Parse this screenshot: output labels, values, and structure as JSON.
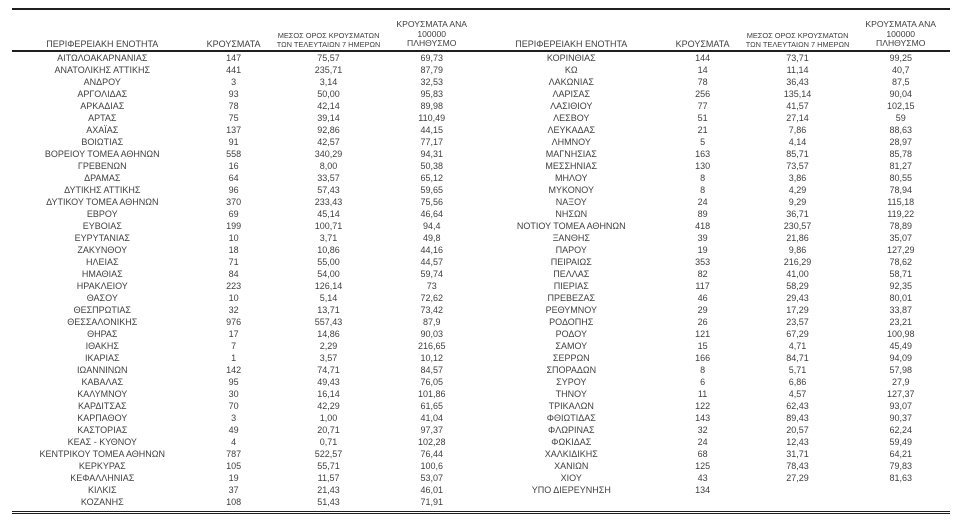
{
  "document": {
    "type": "covid-cases-by-regional-unit-table",
    "text_color": "#3f3f3f",
    "line_color": "#1f1f1f",
    "background_color": "#ffffff"
  },
  "header": {
    "region_label": "ΠΕΡΙΦΕΡΕΙΑΚΗ ΕΝΟΤΗΤΑ",
    "cases_label": "ΚΡΟΥΣΜΑΤΑ",
    "avg7_line1": "ΜΕΣΟΣ ΟΡΟΣ ΚΡΟΥΣΜΑΤΩΝ",
    "avg7_line2": "ΤΩΝ ΤΕΛΕΥΤΑΙΩΝ 7 ΗΜΕΡΩΝ",
    "per100k_line1": "ΚΡΟΥΣΜΑΤΑ ΑΝΑ 100000",
    "per100k_line2": "ΠΛΗΘΥΣΜΟ"
  },
  "tables": [
    {
      "rows": [
        [
          "ΑΙΤΩΛΟΑΚΑΡΝΑΝΙΑΣ",
          "147",
          "75,57",
          "69,73"
        ],
        [
          "ΑΝΑΤΟΛΙΚΗΣ ΑΤΤΙΚΗΣ",
          "441",
          "235,71",
          "87,79"
        ],
        [
          "ΑΝΔΡΟΥ",
          "3",
          "3,14",
          "32,53"
        ],
        [
          "ΑΡΓΟΛΙΔΑΣ",
          "93",
          "50,00",
          "95,83"
        ],
        [
          "ΑΡΚΑΔΙΑΣ",
          "78",
          "42,14",
          "89,98"
        ],
        [
          "ΑΡΤΑΣ",
          "75",
          "39,14",
          "110,49"
        ],
        [
          "ΑΧΑΪΑΣ",
          "137",
          "92,86",
          "44,15"
        ],
        [
          "ΒΟΙΩΤΙΑΣ",
          "91",
          "42,57",
          "77,17"
        ],
        [
          "ΒΟΡΕΙΟΥ ΤΟΜΕΑ ΑΘΗΝΩΝ",
          "558",
          "340,29",
          "94,31"
        ],
        [
          "ΓΡΕΒΕΝΩΝ",
          "16",
          "8,00",
          "50,38"
        ],
        [
          "ΔΡΑΜΑΣ",
          "64",
          "33,57",
          "65,12"
        ],
        [
          "ΔΥΤΙΚΗΣ ΑΤΤΙΚΗΣ",
          "96",
          "57,43",
          "59,65"
        ],
        [
          "ΔΥΤΙΚΟΥ ΤΟΜΕΑ ΑΘΗΝΩΝ",
          "370",
          "233,43",
          "75,56"
        ],
        [
          "ΕΒΡΟΥ",
          "69",
          "45,14",
          "46,64"
        ],
        [
          "ΕΥΒΟΙΑΣ",
          "199",
          "100,71",
          "94,4"
        ],
        [
          "ΕΥΡΥΤΑΝΙΑΣ",
          "10",
          "3,71",
          "49,8"
        ],
        [
          "ΖΑΚΥΝΘΟΥ",
          "18",
          "10,86",
          "44,16"
        ],
        [
          "ΗΛΕΙΑΣ",
          "71",
          "55,00",
          "44,57"
        ],
        [
          "ΗΜΑΘΙΑΣ",
          "84",
          "54,00",
          "59,74"
        ],
        [
          "ΗΡΑΚΛΕΙΟΥ",
          "223",
          "126,14",
          "73"
        ],
        [
          "ΘΑΣΟΥ",
          "10",
          "5,14",
          "72,62"
        ],
        [
          "ΘΕΣΠΡΩΤΙΑΣ",
          "32",
          "13,71",
          "73,42"
        ],
        [
          "ΘΕΣΣΑΛΟΝΙΚΗΣ",
          "976",
          "557,43",
          "87,9"
        ],
        [
          "ΘΗΡΑΣ",
          "17",
          "14,86",
          "90,03"
        ],
        [
          "ΙΘΑΚΗΣ",
          "7",
          "2,29",
          "216,65"
        ],
        [
          "ΙΚΑΡΙΑΣ",
          "1",
          "3,57",
          "10,12"
        ],
        [
          "ΙΩΑΝΝΙΝΩΝ",
          "142",
          "74,71",
          "84,57"
        ],
        [
          "ΚΑΒΑΛΑΣ",
          "95",
          "49,43",
          "76,05"
        ],
        [
          "ΚΑΛΥΜΝΟΥ",
          "30",
          "16,14",
          "101,86"
        ],
        [
          "ΚΑΡΔΙΤΣΑΣ",
          "70",
          "42,29",
          "61,65"
        ],
        [
          "ΚΑΡΠΑΘΟΥ",
          "3",
          "1,00",
          "41,04"
        ],
        [
          "ΚΑΣΤΟΡΙΑΣ",
          "49",
          "20,71",
          "97,37"
        ],
        [
          "ΚΕΑΣ - ΚΥΘΝΟΥ",
          "4",
          "0,71",
          "102,28"
        ],
        [
          "ΚΕΝΤΡΙΚΟΥ ΤΟΜΕΑ ΑΘΗΝΩΝ",
          "787",
          "522,57",
          "76,44"
        ],
        [
          "ΚΕΡΚΥΡΑΣ",
          "105",
          "55,71",
          "100,6"
        ],
        [
          "ΚΕΦΑΛΛΗΝΙΑΣ",
          "19",
          "11,57",
          "53,07"
        ],
        [
          "ΚΙΛΚΙΣ",
          "37",
          "21,43",
          "46,01"
        ],
        [
          "ΚΟΖΑΝΗΣ",
          "108",
          "51,43",
          "71,91"
        ]
      ]
    },
    {
      "rows": [
        [
          "ΚΟΡΙΝΘΙΑΣ",
          "144",
          "73,71",
          "99,25"
        ],
        [
          "ΚΩ",
          "14",
          "11,14",
          "40,7"
        ],
        [
          "ΛΑΚΩΝΙΑΣ",
          "78",
          "36,43",
          "87,5"
        ],
        [
          "ΛΑΡΙΣΑΣ",
          "256",
          "135,14",
          "90,04"
        ],
        [
          "ΛΑΣΙΘΙΟΥ",
          "77",
          "41,57",
          "102,15"
        ],
        [
          "ΛΕΣΒΟΥ",
          "51",
          "27,14",
          "59"
        ],
        [
          "ΛΕΥΚΑΔΑΣ",
          "21",
          "7,86",
          "88,63"
        ],
        [
          "ΛΗΜΝΟΥ",
          "5",
          "4,14",
          "28,97"
        ],
        [
          "ΜΑΓΝΗΣΙΑΣ",
          "163",
          "85,71",
          "85,78"
        ],
        [
          "ΜΕΣΣΗΝΙΑΣ",
          "130",
          "73,57",
          "81,27"
        ],
        [
          "ΜΗΛΟΥ",
          "8",
          "3,86",
          "80,55"
        ],
        [
          "ΜΥΚΟΝΟΥ",
          "8",
          "4,29",
          "78,94"
        ],
        [
          "ΝΑΞΟΥ",
          "24",
          "9,29",
          "115,18"
        ],
        [
          "ΝΗΣΩΝ",
          "89",
          "36,71",
          "119,22"
        ],
        [
          "ΝΟΤΙΟΥ ΤΟΜΕΑ ΑΘΗΝΩΝ",
          "418",
          "230,57",
          "78,89"
        ],
        [
          "ΞΑΝΘΗΣ",
          "39",
          "21,86",
          "35,07"
        ],
        [
          "ΠΑΡΟΥ",
          "19",
          "9,86",
          "127,29"
        ],
        [
          "ΠΕΙΡΑΙΩΣ",
          "353",
          "216,29",
          "78,62"
        ],
        [
          "ΠΕΛΛΑΣ",
          "82",
          "41,00",
          "58,71"
        ],
        [
          "ΠΙΕΡΙΑΣ",
          "117",
          "58,29",
          "92,35"
        ],
        [
          "ΠΡΕΒΕΖΑΣ",
          "46",
          "29,43",
          "80,01"
        ],
        [
          "ΡΕΘΥΜΝΟΥ",
          "29",
          "17,29",
          "33,87"
        ],
        [
          "ΡΟΔΟΠΗΣ",
          "26",
          "23,57",
          "23,21"
        ],
        [
          "ΡΟΔΟΥ",
          "121",
          "67,29",
          "100,98"
        ],
        [
          "ΣΑΜΟΥ",
          "15",
          "4,71",
          "45,49"
        ],
        [
          "ΣΕΡΡΩΝ",
          "166",
          "84,71",
          "94,09"
        ],
        [
          "ΣΠΟΡΑΔΩΝ",
          "8",
          "5,71",
          "57,98"
        ],
        [
          "ΣΥΡΟΥ",
          "6",
          "6,86",
          "27,9"
        ],
        [
          "ΤΗΝΟΥ",
          "11",
          "4,57",
          "127,37"
        ],
        [
          "ΤΡΙΚΑΛΩΝ",
          "122",
          "62,43",
          "93,07"
        ],
        [
          "ΦΘΙΩΤΙΔΑΣ",
          "143",
          "89,43",
          "90,37"
        ],
        [
          "ΦΛΩΡΙΝΑΣ",
          "32",
          "20,57",
          "62,24"
        ],
        [
          "ΦΩΚΙΔΑΣ",
          "24",
          "12,43",
          "59,49"
        ],
        [
          "ΧΑΛΚΙΔΙΚΗΣ",
          "68",
          "31,71",
          "64,21"
        ],
        [
          "ΧΑΝΙΩΝ",
          "125",
          "78,43",
          "79,83"
        ],
        [
          "ΧΙΟΥ",
          "43",
          "27,29",
          "81,63"
        ],
        [
          "ΥΠΟ ΔΙΕΡΕΥΝΗΣΗ",
          "134",
          "",
          ""
        ]
      ]
    }
  ]
}
